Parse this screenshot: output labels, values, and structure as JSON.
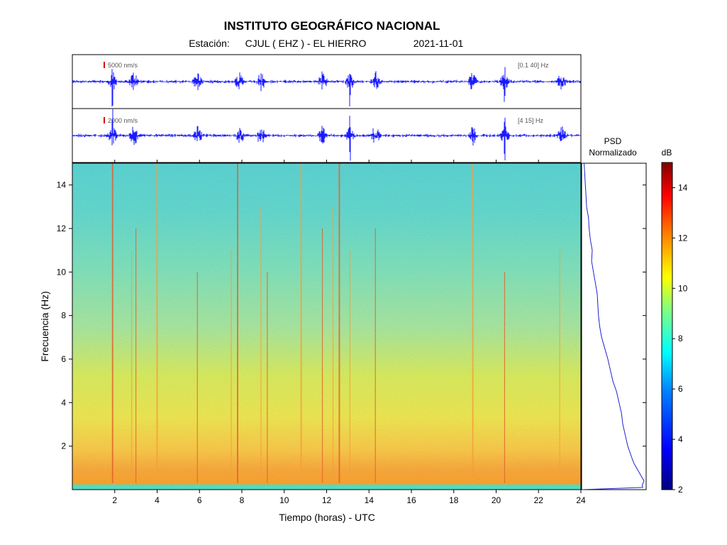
{
  "header": {
    "title": "INSTITUTO GEOGRÁFICO NACIONAL",
    "station_label": "Estación:",
    "station": "CJUL ( EHZ ) - EL HIERRO",
    "date": "2021-11-01"
  },
  "chart_data": [
    {
      "type": "line",
      "name": "seismogram-broadband",
      "scale_label": "5000 nm/s",
      "band_label": "[0.1 40] Hz",
      "xlim": [
        0,
        24
      ],
      "color": "#1a1aff",
      "scale_bar_color": "#e00000",
      "events_hours": [
        1.9,
        2.9,
        5.9,
        7.9,
        8.9,
        11.8,
        13.1,
        14.3,
        18.9,
        20.4,
        23.1
      ],
      "big_spikes_hours": [
        1.9,
        13.1,
        20.4
      ]
    },
    {
      "type": "line",
      "name": "seismogram-filtered",
      "scale_label": "2000 nm/s",
      "band_label": "[4 15] Hz",
      "xlim": [
        0,
        24
      ],
      "color": "#1a1aff",
      "scale_bar_color": "#e00000"
    },
    {
      "type": "heatmap",
      "name": "spectrogram",
      "xlabel": "Tiempo (horas) - UTC",
      "ylabel": "Frecuencia (Hz)",
      "xlim": [
        0,
        24
      ],
      "ylim": [
        0,
        15
      ],
      "xticks": [
        2,
        4,
        6,
        8,
        10,
        12,
        14,
        16,
        18,
        20,
        22,
        24
      ],
      "yticks": [
        2,
        4,
        6,
        8,
        10,
        12,
        14
      ],
      "vertical_streaks_hours": [
        1.9,
        2.8,
        3.0,
        4.0,
        5.9,
        7.5,
        7.8,
        8.9,
        9.2,
        10.8,
        11.8,
        12.3,
        12.6,
        13.1,
        14.3,
        18.9,
        20.4,
        23.0
      ]
    },
    {
      "type": "line",
      "name": "psd-normalized",
      "title_line1": "PSD",
      "title_line2": "Normalizado",
      "ylim": [
        0,
        15
      ],
      "color": "#2020d0",
      "frequency_hz": [
        0.0,
        0.1,
        0.2,
        0.4,
        0.6,
        0.8,
        1.0,
        1.2,
        1.5,
        2.0,
        2.5,
        3.0,
        3.5,
        4.0,
        4.5,
        5.0,
        5.5,
        6.0,
        6.5,
        7.0,
        7.5,
        8.0,
        8.5,
        9.0,
        9.5,
        10.0,
        10.5,
        11.0,
        11.5,
        12.0,
        12.5,
        13.0,
        13.5,
        14.0,
        14.5,
        15.0
      ],
      "normalized_psd": [
        0.0,
        0.98,
        0.97,
        1.0,
        0.96,
        0.92,
        0.88,
        0.84,
        0.8,
        0.74,
        0.7,
        0.66,
        0.64,
        0.6,
        0.56,
        0.5,
        0.46,
        0.42,
        0.37,
        0.32,
        0.29,
        0.27,
        0.26,
        0.25,
        0.22,
        0.19,
        0.16,
        0.17,
        0.14,
        0.12,
        0.11,
        0.08,
        0.07,
        0.06,
        0.05,
        0.04
      ]
    },
    {
      "type": "heatmap",
      "name": "colorbar",
      "unit_label": "dB",
      "range": [
        2,
        15
      ],
      "ticks": [
        2,
        4,
        6,
        8,
        10,
        12,
        14
      ],
      "colors": [
        "#00007f",
        "#0000ff",
        "#0080ff",
        "#00ffff",
        "#80ff80",
        "#ffff00",
        "#ff8000",
        "#ff0000",
        "#7f0000"
      ]
    }
  ]
}
